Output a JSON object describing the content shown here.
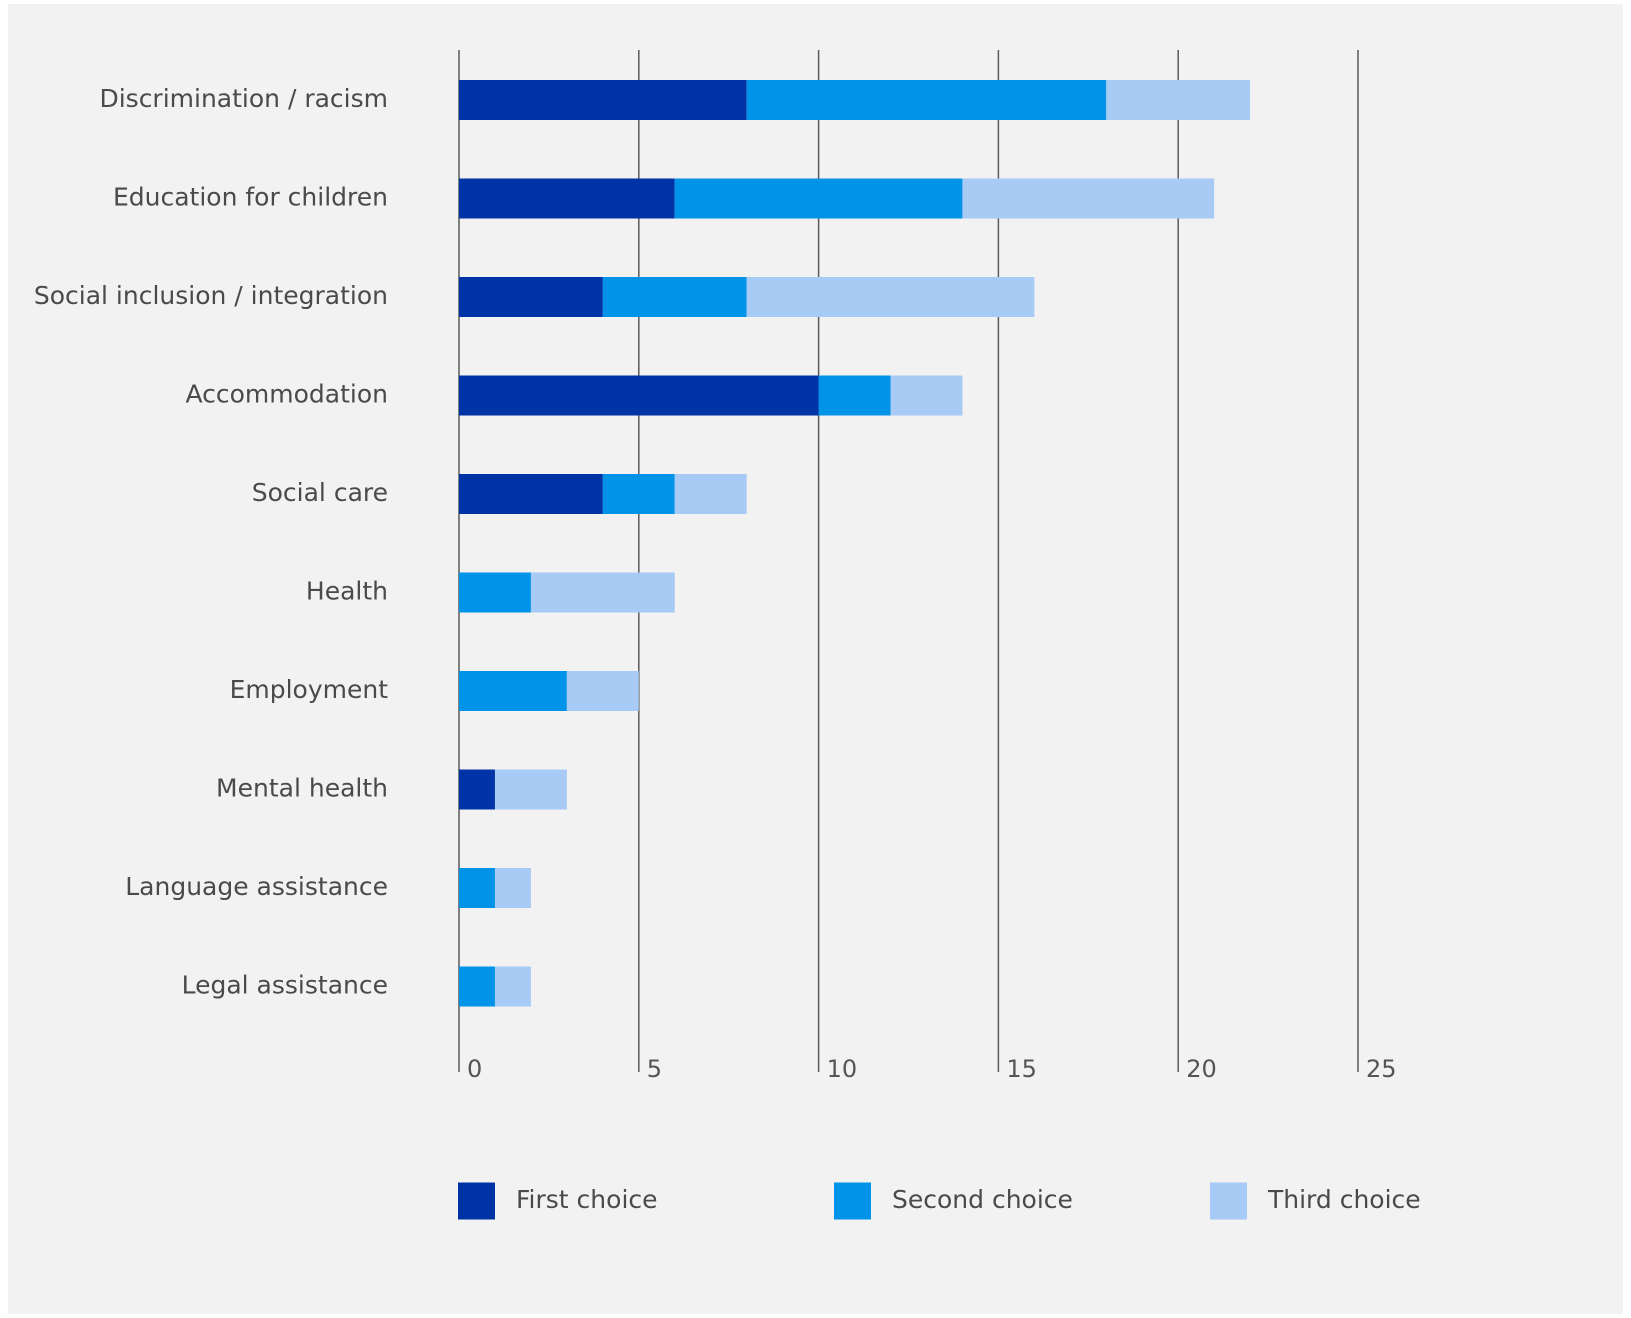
{
  "chart_data": {
    "type": "bar",
    "orientation": "horizontal",
    "stacked": true,
    "title": "",
    "xlabel": "",
    "ylabel": "",
    "xlim": [
      0,
      25
    ],
    "x_ticks": [
      0,
      5,
      10,
      15,
      20,
      25
    ],
    "grid": true,
    "legend_position": "bottom",
    "categories": [
      "Discrimination / racism",
      "Education for children",
      "Social inclusion / integration",
      "Accommodation",
      "Social care",
      "Health",
      "Employment",
      "Mental health",
      "Language assistance",
      "Legal assistance"
    ],
    "series": [
      {
        "name": "First choice",
        "color": "#0033a6",
        "values": [
          8,
          6,
          4,
          10,
          4,
          0,
          0,
          1,
          0,
          0
        ]
      },
      {
        "name": "Second choice",
        "color": "#0093e8",
        "values": [
          10,
          8,
          4,
          2,
          2,
          2,
          3,
          0,
          1,
          1
        ]
      },
      {
        "name": "Third choice",
        "color": "#a7cbf5",
        "values": [
          4,
          7,
          8,
          2,
          2,
          4,
          2,
          2,
          1,
          1
        ]
      }
    ]
  }
}
